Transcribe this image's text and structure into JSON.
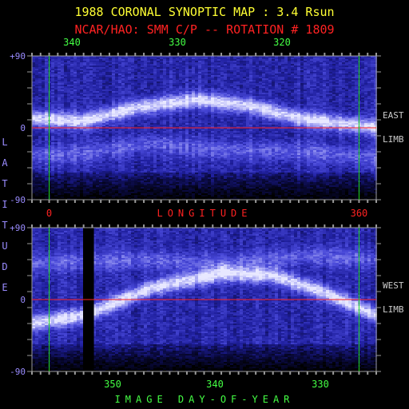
{
  "title": "1988 CORONAL SYNOPTIC MAP : 3.4 Rsun",
  "subtitle": "NCAR/HAO: SMM C/P -- ROTATION # 1809",
  "colors": {
    "title": "#ffff33",
    "subtitle": "#ff2222",
    "top_axis_ticks": "#44ff44",
    "lat_labels": "#9a8cff",
    "longitude_labels": "#ff2222",
    "day_axis_label": "#44ff44",
    "limb_labels": "#cccccc",
    "equator_line": "#ff2222",
    "marker_lines": "#22dd22",
    "background": "#000000",
    "tick_marks": "#9a9a9a"
  },
  "chart_data": [
    {
      "type": "heatmap",
      "panel": "east-limb",
      "title": "1988 CORONAL SYNOPTIC MAP : 3.4 Rsun",
      "subtitle": "NCAR/HAO: SMM C/P -- ROTATION # 1809",
      "top_axis_ticks": [
        "340",
        "330",
        "320"
      ],
      "top_axis_tick_values": [
        340,
        330,
        320
      ],
      "x_axis_label": "LONGITUDE",
      "x_axis_ticks": [
        "0",
        "360"
      ],
      "x_axis_tick_values": [
        0,
        360
      ],
      "xlim": [
        -20,
        380
      ],
      "y_axis_label": "LATITUDE",
      "y_axis_ticks": [
        "+90",
        "0",
        "-90"
      ],
      "y_axis_tick_values": [
        90,
        0,
        -90
      ],
      "ylim": [
        -90,
        90
      ],
      "side_label": [
        "EAST",
        "LIMB"
      ],
      "equator_latitude": 0,
      "marker_longitudes": [
        0,
        360
      ],
      "bright_band_latitude_profile": [
        {
          "longitude": -20,
          "latitude": 12
        },
        {
          "longitude": 40,
          "latitude": 8
        },
        {
          "longitude": 100,
          "latitude": 25
        },
        {
          "longitude": 170,
          "latitude": 35
        },
        {
          "longitude": 230,
          "latitude": 28
        },
        {
          "longitude": 290,
          "latitude": 12
        },
        {
          "longitude": 340,
          "latitude": 5
        },
        {
          "longitude": 380,
          "latitude": 0
        }
      ],
      "secondary_band_latitude_profile": [
        {
          "longitude": -20,
          "latitude": -35
        },
        {
          "longitude": 40,
          "latitude": -32
        },
        {
          "longitude": 120,
          "latitude": -20
        },
        {
          "longitude": 200,
          "latitude": -28
        },
        {
          "longitude": 300,
          "latitude": -30
        },
        {
          "longitude": 380,
          "latitude": -38
        }
      ],
      "colormap": [
        "#000000",
        "#0a0a40",
        "#2020a0",
        "#4848d8",
        "#9090f0",
        "#e8e8ff"
      ]
    },
    {
      "type": "heatmap",
      "panel": "west-limb",
      "x_axis_label": "IMAGE DAY-OF-YEAR",
      "x_axis_ticks": [
        "350",
        "340",
        "330"
      ],
      "x_axis_tick_values": [
        350,
        340,
        330
      ],
      "y_axis_ticks": [
        "+90",
        "0",
        "-90"
      ],
      "y_axis_tick_values": [
        90,
        0,
        -90
      ],
      "ylim": [
        -90,
        90
      ],
      "side_label": [
        "WEST",
        "LIMB"
      ],
      "equator_latitude": 0,
      "marker_longitudes": [
        0,
        360
      ],
      "data_gap_longitude_range": [
        40,
        52
      ],
      "bright_band_latitude_profile": [
        {
          "longitude": -20,
          "latitude": -30
        },
        {
          "longitude": 40,
          "latitude": -20
        },
        {
          "longitude": 120,
          "latitude": 15
        },
        {
          "longitude": 200,
          "latitude": 32
        },
        {
          "longitude": 260,
          "latitude": 30
        },
        {
          "longitude": 320,
          "latitude": 8
        },
        {
          "longitude": 380,
          "latitude": -20
        }
      ],
      "secondary_band_latitude_profile": [
        {
          "longitude": -20,
          "latitude": 45
        },
        {
          "longitude": 100,
          "latitude": 50
        },
        {
          "longitude": 200,
          "latitude": 45
        },
        {
          "longitude": 300,
          "latitude": 55
        },
        {
          "longitude": 380,
          "latitude": 50
        }
      ],
      "colormap": [
        "#000000",
        "#0a0a40",
        "#2020a0",
        "#4848d8",
        "#9090f0",
        "#e8e8ff"
      ]
    }
  ]
}
